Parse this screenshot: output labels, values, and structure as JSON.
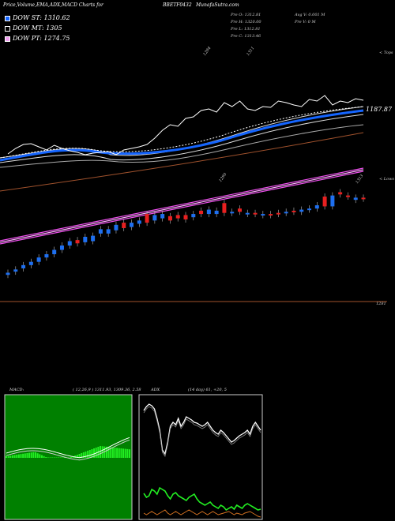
{
  "header": {
    "title": "Price,Volume,EMA,ADX,MACD Charts for",
    "symbol": "BBETF0432",
    "site": "MunafaSutra.com",
    "ohlc": [
      "Pre O: 1312.81",
      "Pre H: 1320.00",
      "Pre L: 1312.81",
      "Pre C: 1313.46"
    ],
    "avg": [
      "Avg V: 0.001 M",
      "Pre V: 0 M"
    ]
  },
  "legend": [
    {
      "label": "DOW ST: 1310.62",
      "color": "#1565ff"
    },
    {
      "label": "DOW MT: 1305",
      "color": "#ffffff"
    },
    {
      "label": "DOW PT: 1274.75",
      "color": "#f0a0f0"
    }
  ],
  "price_labels": {
    "right_top": "< Tops",
    "right_low": "< Lows",
    "level1": "1187.87",
    "level2": "1281",
    "top_a": "1294",
    "top_b": "1311",
    "low_a": "1290",
    "low_b": "1313"
  },
  "panels": {
    "macd_label": "MACD:",
    "macd_params": "( 12,26,9 ) 1311.93,  1309.36,  2.58",
    "adx_label": "ADX",
    "adx_params": "(14 day) 61, +20, 5"
  },
  "colors": {
    "up": "#1e6ff0",
    "down": "#e82020",
    "short_ema": "#1565ff",
    "long_ema": "#f050f0",
    "macd_hist": "#22ee22",
    "adx_plus": "#22ee22",
    "adx_minus": "#d07020"
  },
  "chart_data": {
    "type": "candlestick",
    "x": [
      1,
      2,
      3,
      4,
      5,
      6,
      7,
      8,
      9,
      10,
      11,
      12,
      13,
      14,
      15,
      16,
      17,
      18,
      19,
      20,
      21,
      22,
      23,
      24,
      25,
      26,
      27,
      28,
      29,
      30,
      31,
      32,
      33,
      34,
      35,
      36,
      37,
      38,
      39,
      40,
      41,
      42,
      43,
      44,
      45,
      46,
      47
    ],
    "candles": [
      {
        "o": 1220,
        "c": 1222
      },
      {
        "o": 1223,
        "c": 1225
      },
      {
        "o": 1226,
        "c": 1229
      },
      {
        "o": 1229,
        "c": 1232
      },
      {
        "o": 1232,
        "c": 1236
      },
      {
        "o": 1236,
        "c": 1239
      },
      {
        "o": 1239,
        "c": 1243
      },
      {
        "o": 1243,
        "c": 1247
      },
      {
        "o": 1247,
        "c": 1251
      },
      {
        "o": 1252,
        "c": 1249
      },
      {
        "o": 1250,
        "c": 1255
      },
      {
        "o": 1251,
        "c": 1256
      },
      {
        "o": 1258,
        "c": 1262
      },
      {
        "o": 1258,
        "c": 1262
      },
      {
        "o": 1261,
        "c": 1266
      },
      {
        "o": 1268,
        "c": 1263
      },
      {
        "o": 1264,
        "c": 1268
      },
      {
        "o": 1267,
        "c": 1270
      },
      {
        "o": 1276,
        "c": 1268
      },
      {
        "o": 1270,
        "c": 1275
      },
      {
        "o": 1272,
        "c": 1276
      },
      {
        "o": 1274,
        "c": 1270
      },
      {
        "o": 1275,
        "c": 1272
      },
      {
        "o": 1275,
        "c": 1271
      },
      {
        "o": 1273,
        "c": 1276
      },
      {
        "o": 1279,
        "c": 1276
      },
      {
        "o": 1276,
        "c": 1280
      },
      {
        "o": 1276,
        "c": 1279
      },
      {
        "o": 1286,
        "c": 1277
      },
      {
        "o": 1277,
        "c": 1278
      },
      {
        "o": 1281,
        "c": 1278
      },
      {
        "o": 1276,
        "c": 1277
      },
      {
        "o": 1277,
        "c": 1276
      },
      {
        "o": 1275,
        "c": 1276
      },
      {
        "o": 1276,
        "c": 1275
      },
      {
        "o": 1277,
        "c": 1276
      },
      {
        "o": 1277,
        "c": 1278
      },
      {
        "o": 1279,
        "c": 1278
      },
      {
        "o": 1278,
        "c": 1280
      },
      {
        "o": 1280,
        "c": 1281
      },
      {
        "o": 1281,
        "c": 1284
      },
      {
        "o": 1292,
        "c": 1283
      },
      {
        "o": 1283,
        "c": 1293
      },
      {
        "o": 1296,
        "c": 1294
      },
      {
        "o": 1293,
        "c": 1292
      },
      {
        "o": 1289,
        "c": 1291
      },
      {
        "o": 1291,
        "c": 1290
      }
    ],
    "ema_short": [
      1208,
      1210,
      1212,
      1214,
      1216,
      1218,
      1220,
      1222,
      1224,
      1226,
      1228,
      1230,
      1232,
      1234,
      1236,
      1238,
      1240,
      1242,
      1243,
      1245,
      1247,
      1248,
      1250,
      1251,
      1253,
      1254,
      1256,
      1257,
      1259,
      1260,
      1261,
      1263,
      1264,
      1265,
      1266,
      1268,
      1269,
      1270,
      1271,
      1272,
      1274,
      1275,
      1276,
      1277,
      1279,
      1280,
      1281
    ],
    "ema_long": [
      1232,
      1233,
      1234,
      1235,
      1236,
      1237,
      1238,
      1239,
      1240,
      1241,
      1242,
      1243,
      1244,
      1245,
      1246,
      1247,
      1248,
      1249,
      1250,
      1251,
      1252,
      1253,
      1254,
      1255,
      1256,
      1257,
      1258,
      1259,
      1260,
      1261,
      1262,
      1263,
      1264,
      1265,
      1266,
      1267,
      1268,
      1269,
      1270,
      1271,
      1272,
      1273,
      1274,
      1275,
      1276,
      1277,
      1278
    ]
  }
}
